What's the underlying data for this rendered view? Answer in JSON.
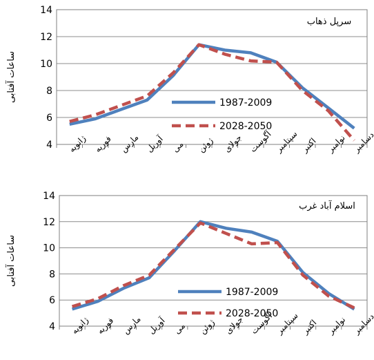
{
  "chart_data": [
    {
      "type": "line",
      "title": "سرپل ذهاب",
      "ylabel": "ساعات آفتابی",
      "xlabel": "",
      "ylim": [
        4,
        14
      ],
      "yticks": [
        4,
        6,
        8,
        10,
        12,
        14
      ],
      "categories": [
        "ژانویه",
        "فوریه",
        "مارس",
        "آوریل",
        "می",
        "ژوئن",
        "جولای",
        "آگوست",
        "سپتامبر",
        "اکتبر",
        "نوامبر",
        "دسامبر"
      ],
      "legend_position": "center-right",
      "series": [
        {
          "name": "1987-2009",
          "color": "#4f81bd",
          "style": "solid",
          "values": [
            5.5,
            5.9,
            6.6,
            7.3,
            9.1,
            11.4,
            11.0,
            10.8,
            10.1,
            8.2,
            6.7,
            5.2
          ]
        },
        {
          "name": "2028-2050",
          "color": "#c0504d",
          "style": "dashed",
          "values": [
            5.7,
            6.2,
            6.9,
            7.6,
            9.3,
            11.4,
            10.7,
            10.2,
            10.1,
            8.0,
            6.5,
            4.3
          ]
        }
      ]
    },
    {
      "type": "line",
      "title": "اسلام آباد غرب",
      "ylabel": "ساعات آفتابی",
      "xlabel": "",
      "ylim": [
        4,
        14
      ],
      "yticks": [
        4,
        6,
        8,
        10,
        12,
        14
      ],
      "categories": [
        "ژانویه",
        "فوریه",
        "مارس",
        "آوریل",
        "می",
        "ژوئن",
        "جولای",
        "آگوست",
        "سپتامبر",
        "اکتبر",
        "نوامبر",
        "دسامبر"
      ],
      "legend_position": "center-right",
      "series": [
        {
          "name": "1987-2009",
          "color": "#4f81bd",
          "style": "solid",
          "values": [
            5.3,
            5.9,
            6.9,
            7.7,
            9.8,
            12.0,
            11.5,
            11.2,
            10.5,
            8.1,
            6.5,
            5.3
          ]
        },
        {
          "name": "2028-2050",
          "color": "#c0504d",
          "style": "dashed",
          "values": [
            5.5,
            6.1,
            7.1,
            7.9,
            9.9,
            11.9,
            11.1,
            10.3,
            10.4,
            7.9,
            6.3,
            5.4
          ]
        }
      ]
    }
  ]
}
